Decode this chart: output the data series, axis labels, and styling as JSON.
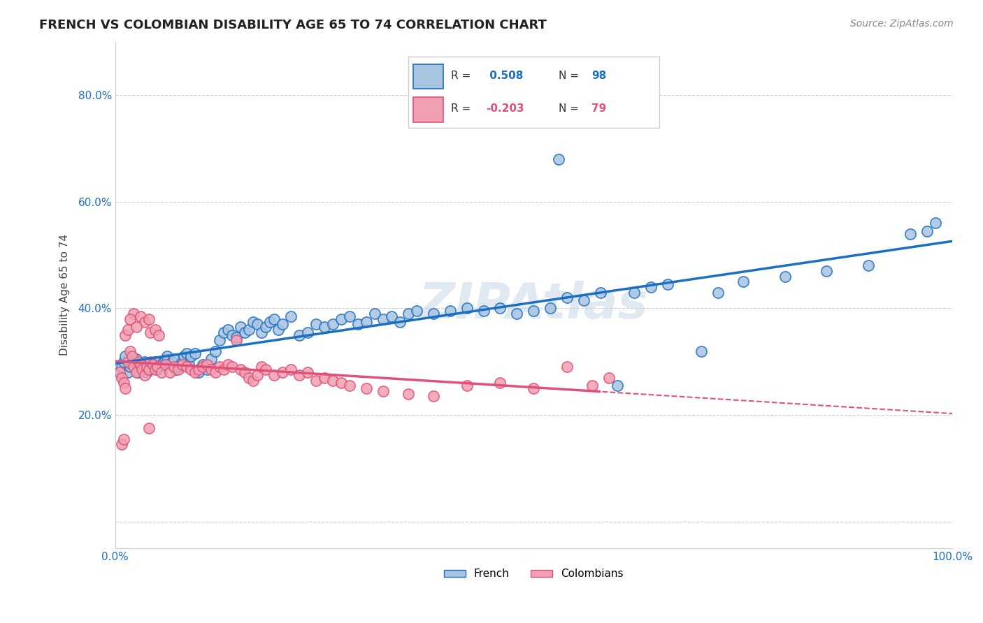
{
  "title": "FRENCH VS COLOMBIAN DISABILITY AGE 65 TO 74 CORRELATION CHART",
  "source": "Source: ZipAtlas.com",
  "ylabel": "Disability Age 65 to 74",
  "xlabel": "",
  "xlim": [
    0.0,
    1.0
  ],
  "ylim": [
    -0.05,
    0.9
  ],
  "yticks": [
    0.0,
    0.2,
    0.4,
    0.6,
    0.8
  ],
  "yticklabels": [
    "",
    "20.0%",
    "40.0%",
    "60.0%",
    "80.0%"
  ],
  "xticks": [
    0.0,
    0.2,
    0.4,
    0.6,
    0.8,
    1.0
  ],
  "xticklabels": [
    "0.0%",
    "",
    "",
    "",
    "",
    "100.0%"
  ],
  "french_R": 0.508,
  "french_N": 98,
  "colombian_R": -0.203,
  "colombian_N": 79,
  "french_color": "#a8c4e0",
  "french_line_color": "#1a6fc4",
  "colombian_color": "#f0a0b0",
  "colombian_line_color": "#e0507a",
  "background_color": "#ffffff",
  "grid_color": "#cccccc",
  "watermark": "ZIPAtlas",
  "french_scatter_x": [
    0.005,
    0.008,
    0.01,
    0.012,
    0.015,
    0.018,
    0.02,
    0.022,
    0.025,
    0.028,
    0.03,
    0.032,
    0.035,
    0.038,
    0.04,
    0.042,
    0.045,
    0.048,
    0.05,
    0.052,
    0.055,
    0.058,
    0.06,
    0.062,
    0.065,
    0.068,
    0.07,
    0.072,
    0.075,
    0.078,
    0.08,
    0.082,
    0.085,
    0.088,
    0.09,
    0.095,
    0.1,
    0.105,
    0.11,
    0.115,
    0.12,
    0.125,
    0.13,
    0.135,
    0.14,
    0.145,
    0.15,
    0.155,
    0.16,
    0.165,
    0.17,
    0.175,
    0.18,
    0.185,
    0.19,
    0.195,
    0.2,
    0.21,
    0.22,
    0.23,
    0.24,
    0.25,
    0.26,
    0.27,
    0.28,
    0.29,
    0.3,
    0.31,
    0.32,
    0.33,
    0.34,
    0.35,
    0.36,
    0.38,
    0.4,
    0.42,
    0.44,
    0.46,
    0.48,
    0.5,
    0.52,
    0.54,
    0.56,
    0.58,
    0.6,
    0.62,
    0.64,
    0.66,
    0.7,
    0.72,
    0.75,
    0.8,
    0.85,
    0.9,
    0.95,
    0.98,
    0.53,
    0.97
  ],
  "french_scatter_y": [
    0.28,
    0.29,
    0.3,
    0.31,
    0.28,
    0.29,
    0.295,
    0.3,
    0.305,
    0.28,
    0.29,
    0.295,
    0.3,
    0.28,
    0.285,
    0.29,
    0.295,
    0.3,
    0.285,
    0.29,
    0.295,
    0.3,
    0.305,
    0.31,
    0.295,
    0.3,
    0.305,
    0.285,
    0.29,
    0.295,
    0.3,
    0.31,
    0.315,
    0.295,
    0.31,
    0.315,
    0.28,
    0.295,
    0.285,
    0.305,
    0.32,
    0.34,
    0.355,
    0.36,
    0.35,
    0.345,
    0.365,
    0.355,
    0.36,
    0.375,
    0.37,
    0.355,
    0.365,
    0.375,
    0.38,
    0.36,
    0.37,
    0.385,
    0.35,
    0.355,
    0.37,
    0.365,
    0.37,
    0.38,
    0.385,
    0.37,
    0.375,
    0.39,
    0.38,
    0.385,
    0.375,
    0.39,
    0.395,
    0.39,
    0.395,
    0.4,
    0.395,
    0.4,
    0.39,
    0.395,
    0.4,
    0.42,
    0.415,
    0.43,
    0.255,
    0.43,
    0.44,
    0.445,
    0.32,
    0.43,
    0.45,
    0.46,
    0.47,
    0.48,
    0.54,
    0.56,
    0.68,
    0.545
  ],
  "colombian_scatter_x": [
    0.005,
    0.008,
    0.01,
    0.012,
    0.015,
    0.018,
    0.02,
    0.022,
    0.025,
    0.028,
    0.03,
    0.032,
    0.035,
    0.038,
    0.04,
    0.042,
    0.045,
    0.048,
    0.05,
    0.055,
    0.06,
    0.065,
    0.07,
    0.075,
    0.08,
    0.085,
    0.09,
    0.095,
    0.1,
    0.105,
    0.11,
    0.115,
    0.12,
    0.125,
    0.13,
    0.135,
    0.14,
    0.145,
    0.15,
    0.155,
    0.16,
    0.165,
    0.17,
    0.175,
    0.18,
    0.19,
    0.2,
    0.21,
    0.22,
    0.23,
    0.24,
    0.25,
    0.26,
    0.27,
    0.28,
    0.3,
    0.32,
    0.35,
    0.38,
    0.42,
    0.46,
    0.5,
    0.54,
    0.57,
    0.59,
    0.022,
    0.018,
    0.03,
    0.035,
    0.04,
    0.012,
    0.015,
    0.025,
    0.042,
    0.048,
    0.052,
    0.008,
    0.01,
    0.04
  ],
  "colombian_scatter_y": [
    0.28,
    0.27,
    0.26,
    0.25,
    0.3,
    0.32,
    0.31,
    0.29,
    0.28,
    0.3,
    0.295,
    0.285,
    0.275,
    0.29,
    0.285,
    0.3,
    0.295,
    0.285,
    0.29,
    0.28,
    0.295,
    0.28,
    0.29,
    0.285,
    0.295,
    0.29,
    0.285,
    0.28,
    0.285,
    0.29,
    0.295,
    0.285,
    0.28,
    0.29,
    0.285,
    0.295,
    0.29,
    0.34,
    0.285,
    0.28,
    0.27,
    0.265,
    0.275,
    0.29,
    0.285,
    0.275,
    0.28,
    0.285,
    0.275,
    0.28,
    0.265,
    0.27,
    0.265,
    0.26,
    0.255,
    0.25,
    0.245,
    0.24,
    0.235,
    0.255,
    0.26,
    0.25,
    0.29,
    0.255,
    0.27,
    0.39,
    0.38,
    0.385,
    0.375,
    0.38,
    0.35,
    0.36,
    0.365,
    0.355,
    0.36,
    0.35,
    0.145,
    0.155,
    0.175
  ]
}
